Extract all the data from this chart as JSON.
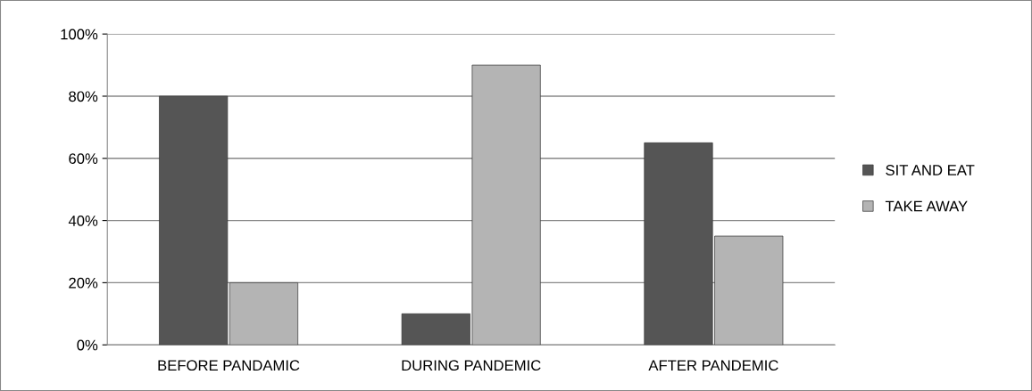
{
  "chart_data": {
    "type": "bar",
    "categories": [
      "BEFORE PANDAMIC",
      "DURING PANDEMIC",
      "AFTER PANDEMIC"
    ],
    "series": [
      {
        "name": "SIT AND EAT",
        "color": "#555555",
        "values": [
          80,
          10,
          65
        ]
      },
      {
        "name": "TAKE AWAY",
        "color": "#b4b4b4",
        "values": [
          20,
          90,
          35
        ]
      }
    ],
    "ylim": [
      0,
      100
    ],
    "yticks": [
      {
        "value": 0,
        "label": "0%"
      },
      {
        "value": 20,
        "label": "20%"
      },
      {
        "value": 40,
        "label": "40%"
      },
      {
        "value": 60,
        "label": "60%"
      },
      {
        "value": 80,
        "label": "80%"
      },
      {
        "value": 100,
        "label": "100%"
      }
    ],
    "grid": "y",
    "legend": "right"
  }
}
